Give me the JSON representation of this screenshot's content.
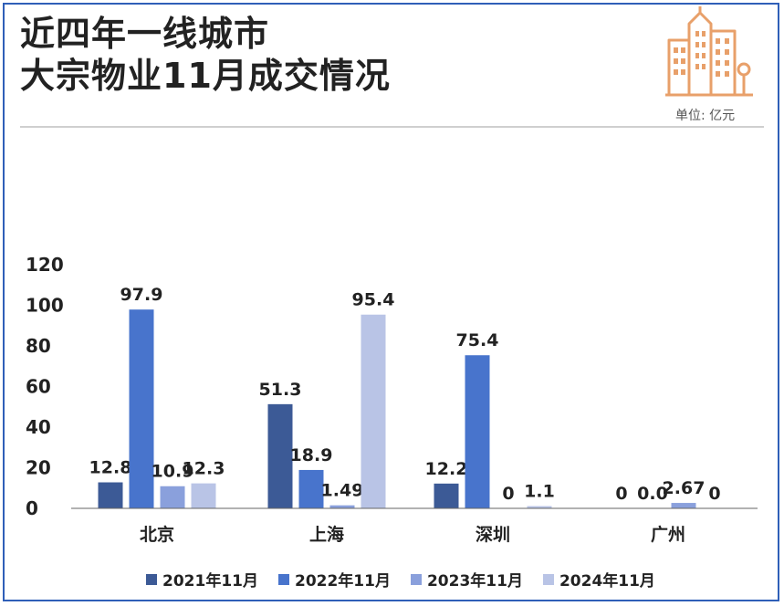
{
  "title_lines": [
    "近四年一线城市",
    "大宗物业11月成交情况"
  ],
  "unit": "单位: 亿元",
  "colors": [
    "#3c5a96",
    "#4874cc",
    "#8aa0dc",
    "#b9c4e6"
  ],
  "chart_data": {
    "type": "bar",
    "categories": [
      "北京",
      "上海",
      "深圳",
      "广州"
    ],
    "series": [
      {
        "name": "2021年11月",
        "values": [
          12.8,
          51.3,
          12.2,
          0
        ],
        "labels": [
          "12.8",
          "51.3",
          "12.2",
          "0"
        ]
      },
      {
        "name": "2022年11月",
        "values": [
          97.9,
          18.9,
          75.4,
          0.0
        ],
        "labels": [
          "97.9",
          "18.9",
          "75.4",
          "0.0"
        ]
      },
      {
        "name": "2023年11月",
        "values": [
          10.9,
          1.49,
          0,
          2.67
        ],
        "labels": [
          "10.9",
          "1.49",
          "0",
          "2.67"
        ]
      },
      {
        "name": "2024年11月",
        "values": [
          12.3,
          95.4,
          1.1,
          0
        ],
        "labels": [
          "12.3",
          "95.4",
          "1.1",
          "0"
        ]
      }
    ],
    "yticks": [
      0,
      20,
      40,
      60,
      80,
      100,
      120
    ],
    "ylim": [
      0,
      120
    ],
    "legend": "bottom"
  }
}
